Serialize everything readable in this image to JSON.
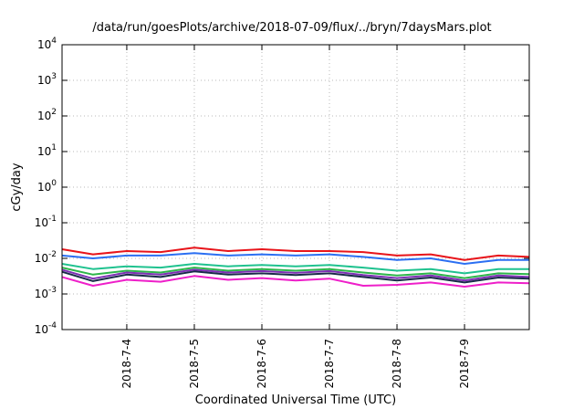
{
  "chart_data": {
    "type": "line",
    "title": "/data/run/goesPlots/archive/2018-07-09/flux/../bryn/7daysMars.plot",
    "xlabel": "Coordinated Universal Time (UTC)",
    "ylabel": "cGy/day",
    "y_scale": "log",
    "ylim": [
      0.0001,
      10000
    ],
    "y_ticks": [
      {
        "value": 0.0001,
        "base": "10",
        "exp": "-4"
      },
      {
        "value": 0.001,
        "base": "10",
        "exp": "-3"
      },
      {
        "value": 0.01,
        "base": "10",
        "exp": "-2"
      },
      {
        "value": 0.1,
        "base": "10",
        "exp": "-1"
      },
      {
        "value": 1,
        "base": "10",
        "exp": "0"
      },
      {
        "value": 10,
        "base": "10",
        "exp": "1"
      },
      {
        "value": 100,
        "base": "10",
        "exp": "2"
      },
      {
        "value": 1000,
        "base": "10",
        "exp": "3"
      },
      {
        "value": 10000,
        "base": "10",
        "exp": "4"
      }
    ],
    "xlim": [
      "2018-07-03 01:00",
      "2018-07-09 23:00"
    ],
    "x_ticks": [
      "2018-7-4",
      "2018-7-5",
      "2018-7-6",
      "2018-7-7",
      "2018-7-8",
      "2018-7-9"
    ],
    "grid": true,
    "x": [
      "2018-07-03 01:00",
      "2018-07-03 12:00",
      "2018-07-04 00:00",
      "2018-07-04 12:00",
      "2018-07-05 00:00",
      "2018-07-05 12:00",
      "2018-07-06 00:00",
      "2018-07-06 12:00",
      "2018-07-07 00:00",
      "2018-07-07 12:00",
      "2018-07-08 00:00",
      "2018-07-08 12:00",
      "2018-07-09 00:00",
      "2018-07-09 12:00",
      "2018-07-09 23:00"
    ],
    "series": [
      {
        "color": "#e8141a",
        "values": [
          0.018,
          0.013,
          0.016,
          0.015,
          0.02,
          0.016,
          0.018,
          0.016,
          0.016,
          0.015,
          0.012,
          0.013,
          0.009,
          0.012,
          0.011
        ]
      },
      {
        "color": "#2b6ff2",
        "values": [
          0.012,
          0.01,
          0.012,
          0.012,
          0.014,
          0.012,
          0.013,
          0.012,
          0.013,
          0.011,
          0.009,
          0.01,
          0.007,
          0.009,
          0.009
        ]
      },
      {
        "color": "#1fc28f",
        "values": [
          0.007,
          0.005,
          0.006,
          0.0055,
          0.007,
          0.006,
          0.0065,
          0.006,
          0.0065,
          0.0055,
          0.0045,
          0.005,
          0.0038,
          0.005,
          0.005
        ]
      },
      {
        "color": "#2db54a",
        "values": [
          0.0055,
          0.0035,
          0.0045,
          0.004,
          0.0055,
          0.0045,
          0.005,
          0.0045,
          0.005,
          0.004,
          0.0033,
          0.0038,
          0.0028,
          0.0038,
          0.0036
        ]
      },
      {
        "color": "#7d2fb5",
        "values": [
          0.0048,
          0.0027,
          0.004,
          0.0035,
          0.0048,
          0.004,
          0.0044,
          0.0039,
          0.0044,
          0.0034,
          0.0028,
          0.0033,
          0.0024,
          0.0033,
          0.003
        ]
      },
      {
        "color": "#1a2a4a",
        "values": [
          0.0042,
          0.0023,
          0.0035,
          0.003,
          0.0043,
          0.0035,
          0.0038,
          0.0034,
          0.0038,
          0.003,
          0.0024,
          0.0029,
          0.0021,
          0.0029,
          0.0027
        ]
      },
      {
        "color": "#ee1fc9",
        "values": [
          0.003,
          0.0017,
          0.0025,
          0.0022,
          0.0032,
          0.0025,
          0.0028,
          0.0024,
          0.0027,
          0.0017,
          0.0018,
          0.0021,
          0.0016,
          0.0021,
          0.002
        ]
      }
    ]
  }
}
